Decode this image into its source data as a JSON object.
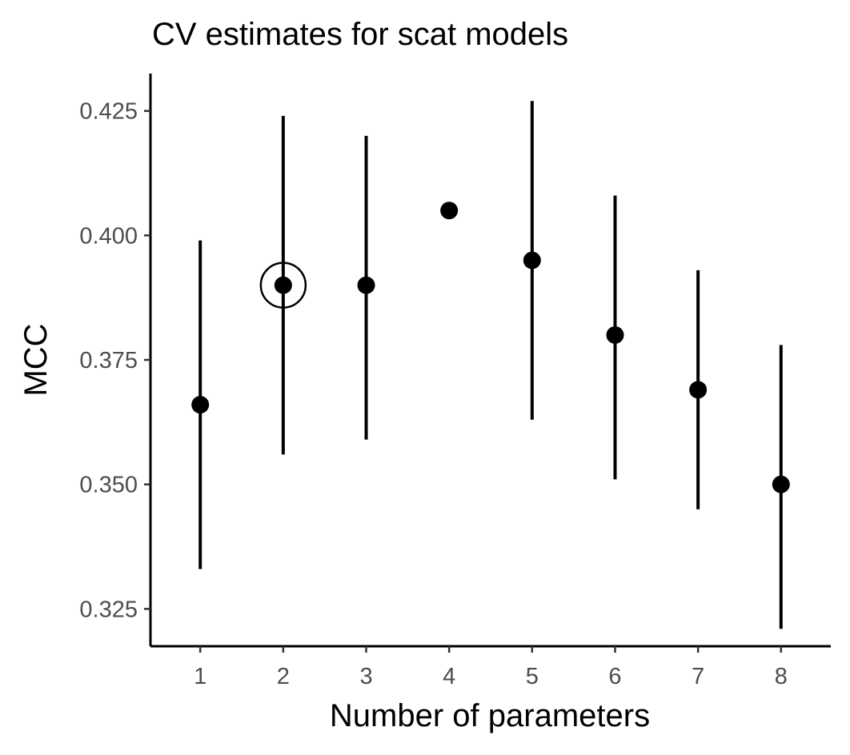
{
  "chart_data": {
    "type": "scatter",
    "title": "CV estimates for scat models",
    "xlabel": "Number of parameters",
    "ylabel": "MCC",
    "x": [
      1,
      2,
      3,
      4,
      5,
      6,
      7,
      8
    ],
    "x_tick_labels": [
      "1",
      "2",
      "3",
      "4",
      "5",
      "6",
      "7",
      "8"
    ],
    "y_ticks": [
      0.325,
      0.35,
      0.375,
      0.4,
      0.425
    ],
    "y_tick_labels": [
      "0.325",
      "0.350",
      "0.375",
      "0.400",
      "0.425"
    ],
    "xlim": [
      0.4,
      8.6
    ],
    "ylim": [
      0.3175,
      0.4325
    ],
    "series": [
      {
        "values": [
          0.366,
          0.39,
          0.39,
          0.405,
          0.395,
          0.38,
          0.369,
          0.35
        ],
        "lower": [
          0.333,
          0.356,
          0.359,
          0.405,
          0.363,
          0.351,
          0.345,
          0.321
        ],
        "upper": [
          0.399,
          0.424,
          0.42,
          0.405,
          0.427,
          0.408,
          0.393,
          0.378
        ]
      }
    ],
    "highlighted_x": 2,
    "grid": false,
    "colors": {
      "points": "#000000",
      "axis": "#000000",
      "tick_labels": "#4d4d4d"
    }
  }
}
